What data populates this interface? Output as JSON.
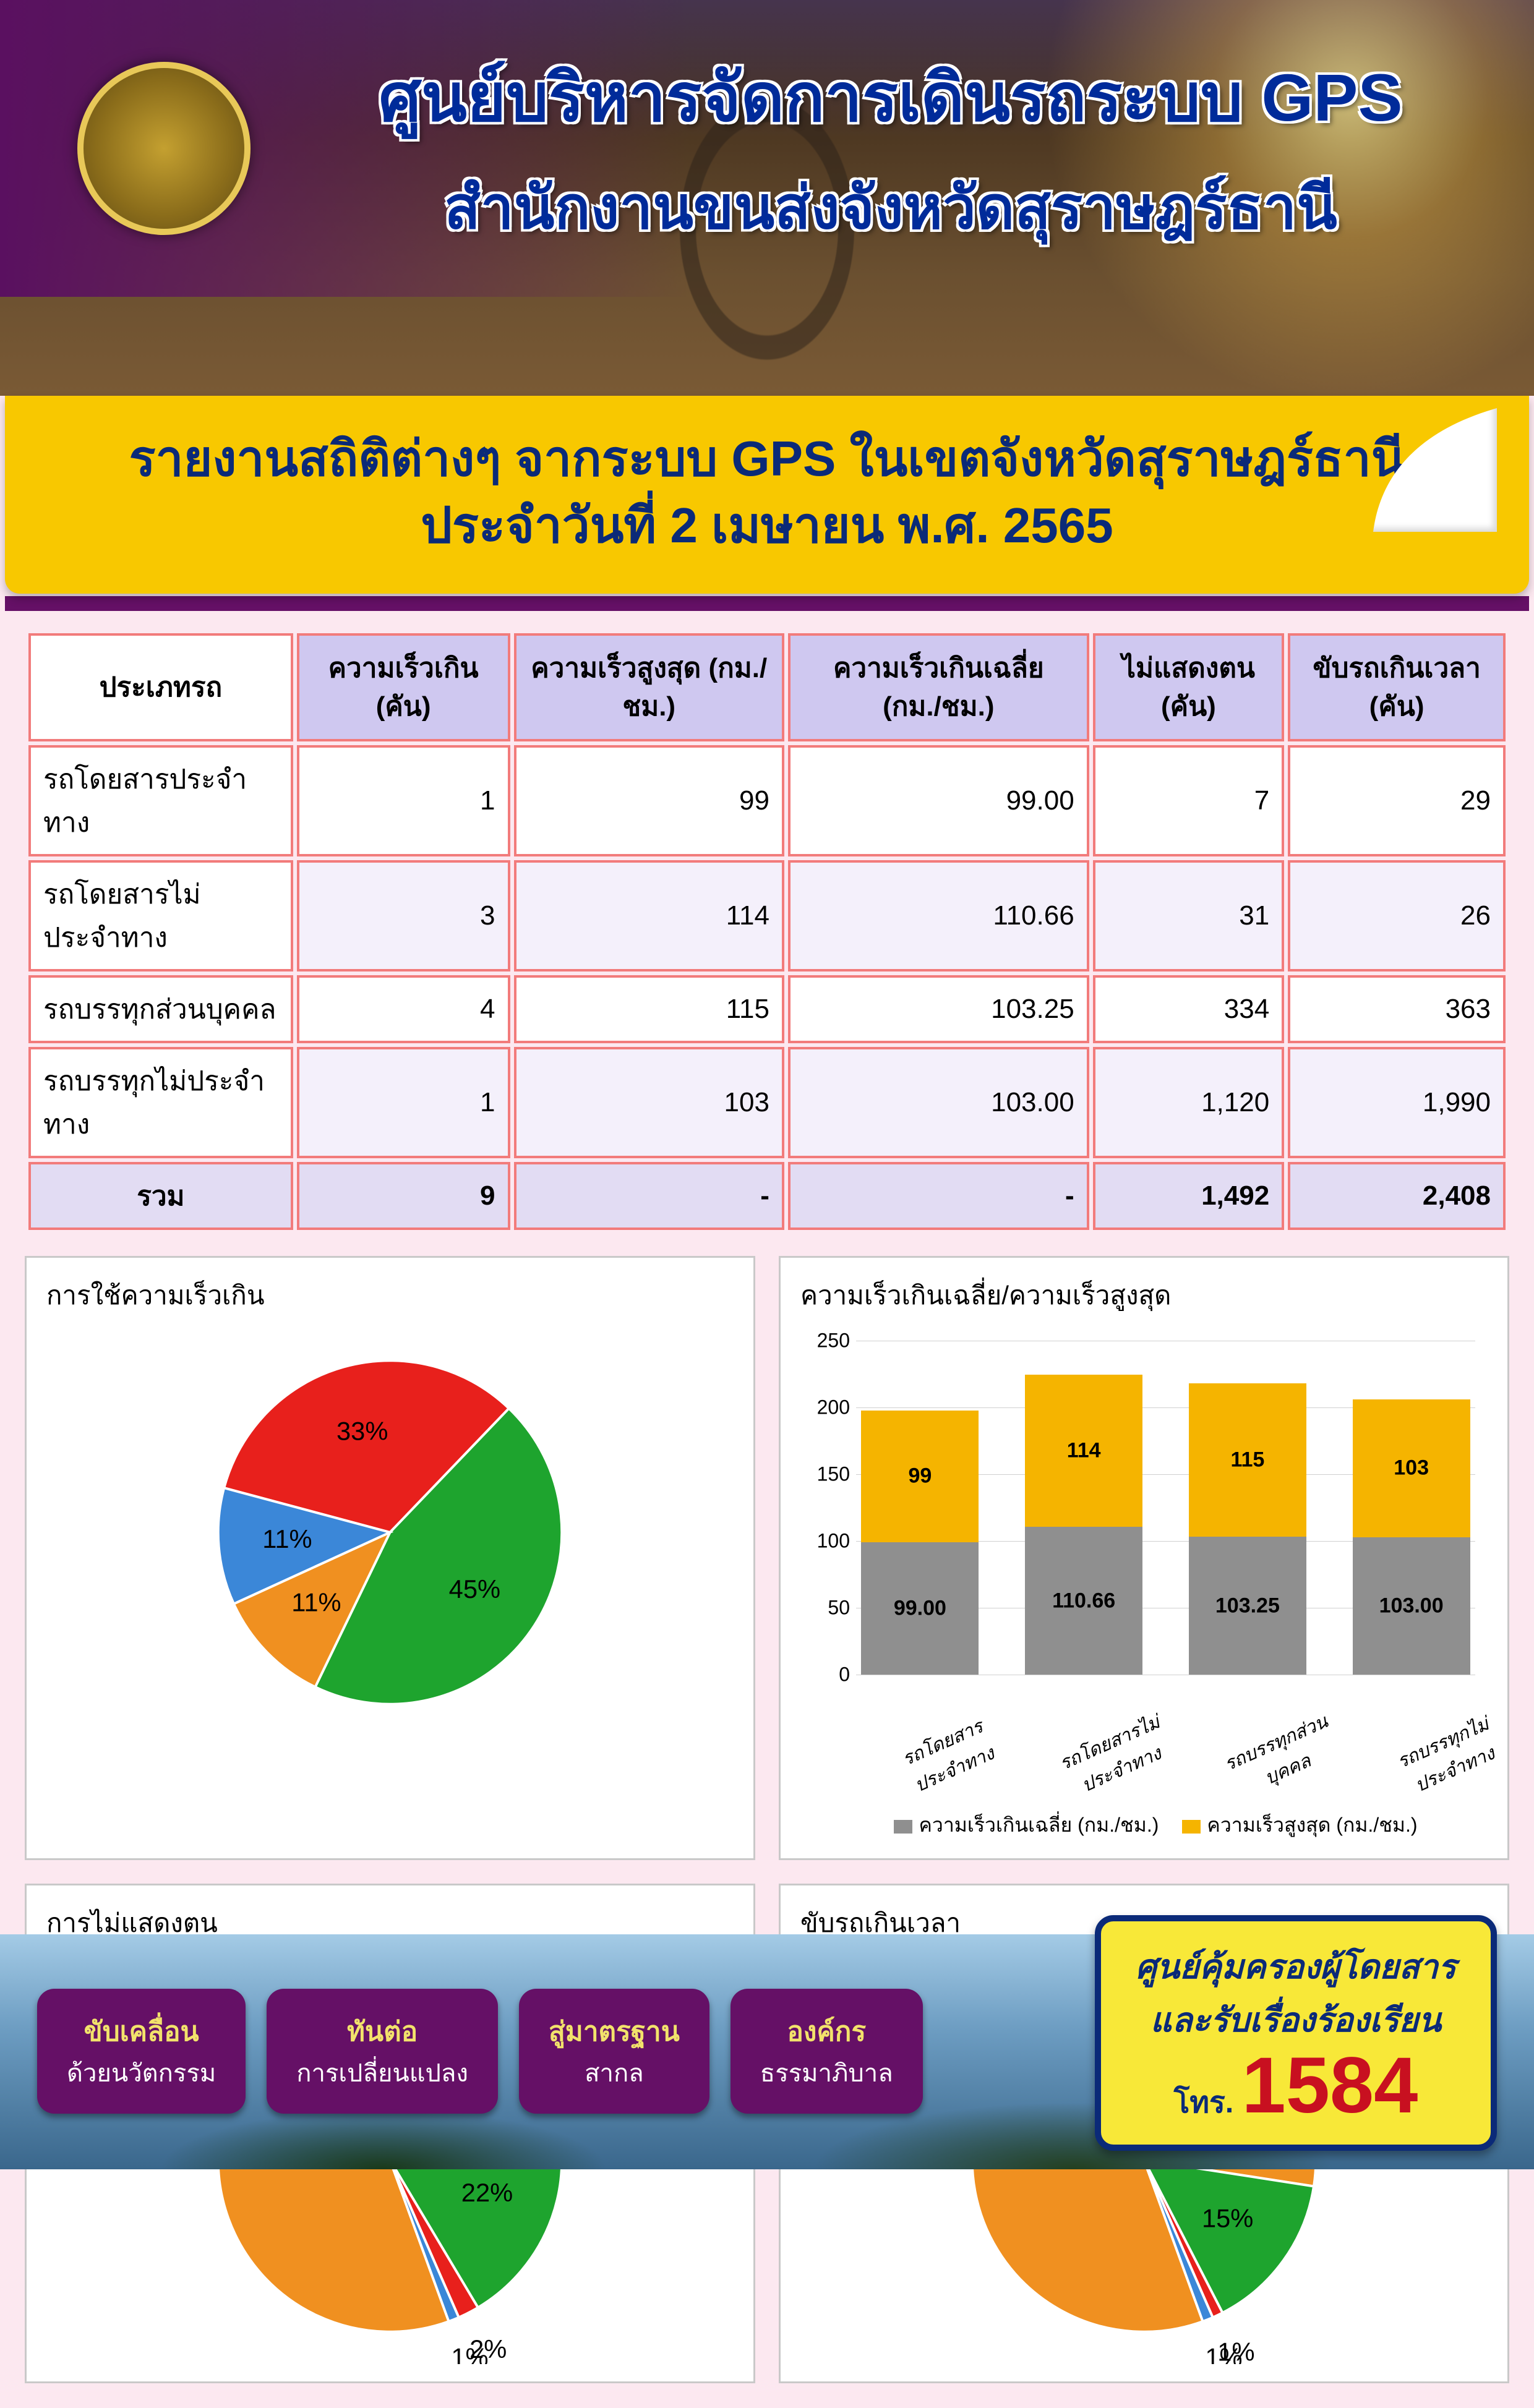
{
  "header": {
    "title": "ศูนย์บริหารจัดการเดินรถระบบ GPS",
    "subtitle": "สำนักงานขนส่งจังหวัดสุราษฎร์ธานี"
  },
  "banner": {
    "line1": "รายงานสถิติต่างๆ จากระบบ GPS ในเขตจังหวัดสุราษฎร์ธานี",
    "line2": "ประจำวันที่  2  เมษายน  พ.ศ. 2565"
  },
  "table": {
    "columns": [
      "ประเภทรถ",
      "ความเร็วเกิน (คัน)",
      "ความเร็วสูงสุด (กม./ชม.)",
      "ความเร็วเกินเฉลี่ย (กม./ชม.)",
      "ไม่แสดงตน (คัน)",
      "ขับรถเกินเวลา (คัน)"
    ],
    "rows": [
      [
        "รถโดยสารประจำทาง",
        "1",
        "99",
        "99.00",
        "7",
        "29"
      ],
      [
        "รถโดยสารไม่ประจำทาง",
        "3",
        "114",
        "110.66",
        "31",
        "26"
      ],
      [
        "รถบรรทุกส่วนบุคคล",
        "4",
        "115",
        "103.25",
        "334",
        "363"
      ],
      [
        "รถบรรทุกไม่ประจำทาง",
        "1",
        "103",
        "103.00",
        "1,120",
        "1,990"
      ]
    ],
    "total_label": "รวม",
    "total": [
      "9",
      "-",
      "-",
      "1,492",
      "2,408"
    ]
  },
  "colors": {
    "red": "#e8201c",
    "green": "#1ea42e",
    "blue": "#3b87d8",
    "orange": "#f09020",
    "gray": "#8f8f8f",
    "gold": "#f5b400",
    "panel_border": "#c9c9c9",
    "table_border": "#f27b7b",
    "table_head_bg": "#cfc8f0",
    "banner_bg": "#f8c800",
    "banner_text": "#0b2a78"
  },
  "chart_speed_over": {
    "title": "การใช้ความเร็วเกิน",
    "type": "pie",
    "slices": [
      {
        "label": "33%",
        "value": 33,
        "color": "#e8201c"
      },
      {
        "label": "45%",
        "value": 45,
        "color": "#1ea42e"
      },
      {
        "label": "11%",
        "value": 11,
        "color": "#f09020"
      },
      {
        "label": "11%",
        "value": 11,
        "color": "#3b87d8"
      }
    ]
  },
  "chart_speed_bar": {
    "title": "ความเร็วเกินเฉลี่ย/ความเร็วสูงสุด",
    "type": "stacked_bar",
    "ymax": 250,
    "ytick": 50,
    "categories": [
      "รถโดยสารประจำทาง",
      "รถโดยสารไม่ประจำทาง",
      "รถบรรทุกส่วนบุคคล",
      "รถบรรทุกไม่ประจำทาง"
    ],
    "series": [
      {
        "name": "ความเร็วเกินเฉลี่ย (กม./ชม.)",
        "color": "#8f8f8f",
        "values": [
          99.0,
          110.66,
          103.25,
          103.0
        ],
        "labels": [
          "99.00",
          "110.66",
          "103.25",
          "103.00"
        ]
      },
      {
        "name": "ความเร็วสูงสุด (กม./ชม.)",
        "color": "#f5b400",
        "values": [
          99,
          114,
          115,
          103
        ],
        "labels": [
          "99",
          "114",
          "115",
          "103"
        ]
      }
    ]
  },
  "chart_no_id": {
    "title": "การไม่แสดงตน",
    "type": "pie",
    "slices": [
      {
        "label": "75%",
        "value": 75,
        "color": "#f09020"
      },
      {
        "label": "22%",
        "value": 22,
        "color": "#1ea42e"
      },
      {
        "label": "2%",
        "value": 2,
        "color": "#e8201c"
      },
      {
        "label": "1%",
        "value": 1,
        "color": "#3b87d8"
      }
    ]
  },
  "chart_overtime": {
    "title": "ขับรถเกินเวลา",
    "type": "pie",
    "slices": [
      {
        "label": "83%",
        "value": 83,
        "color": "#f09020"
      },
      {
        "label": "15%",
        "value": 15,
        "color": "#1ea42e"
      },
      {
        "label": "1%",
        "value": 1,
        "color": "#e8201c"
      },
      {
        "label": "1%",
        "value": 1,
        "color": "#3b87d8"
      }
    ]
  },
  "footer": {
    "pills": [
      {
        "t1": "ขับเคลื่อน",
        "t2": "ด้วยนวัตกรรม"
      },
      {
        "t1": "ทันต่อ",
        "t2": "การเปลี่ยนแปลง"
      },
      {
        "t1": "สู่มาตรฐาน",
        "t2": "สากล"
      },
      {
        "t1": "องค์กร",
        "t2": "ธรรมาภิบาล"
      }
    ],
    "hotline": {
      "l1": "ศูนย์คุ้มครองผู้โดยสาร",
      "l2": "และรับเรื่องร้องเรียน",
      "l3": "โทร.",
      "num": "1584"
    }
  }
}
